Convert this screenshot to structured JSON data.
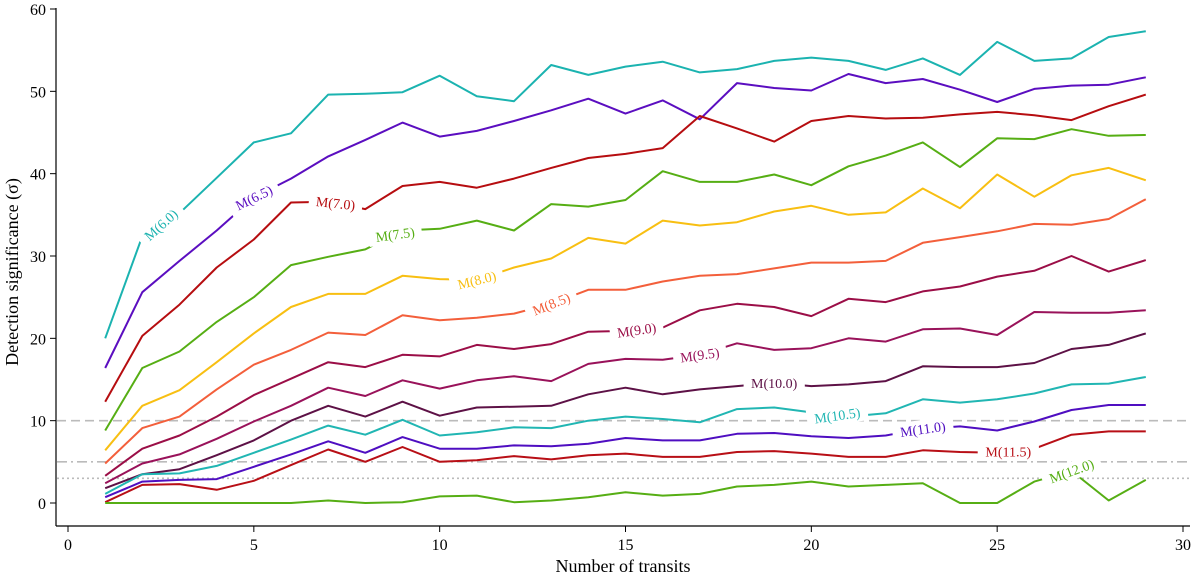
{
  "chart_data": {
    "type": "line",
    "title": "",
    "xlabel": "Number of transits",
    "ylabel": "Detection significance (σ)",
    "xlim": [
      0,
      30
    ],
    "ylim": [
      0,
      60
    ],
    "xticks": [
      0,
      5,
      10,
      15,
      20,
      25,
      30
    ],
    "yticks": [
      0,
      10,
      20,
      30,
      40,
      50,
      60
    ],
    "grid": false,
    "reference_lines": [
      {
        "name": "10-sigma",
        "y": 10,
        "style": "dashed",
        "color": "#bbbbbb"
      },
      {
        "name": "5-sigma",
        "y": 5,
        "style": "dashdot",
        "color": "#bbbbbb"
      },
      {
        "name": "3-sigma",
        "y": 3,
        "style": "dotted",
        "color": "#bbbbbb"
      }
    ],
    "x": [
      1,
      2,
      3,
      4,
      5,
      6,
      7,
      8,
      9,
      10,
      11,
      12,
      13,
      14,
      15,
      16,
      17,
      18,
      19,
      20,
      21,
      22,
      23,
      24,
      25,
      26,
      27,
      28,
      29
    ],
    "series": [
      {
        "name": "M(6.0)",
        "color": "#1bb3b0",
        "label_x": 2.5,
        "label_angle": -42,
        "values": [
          20,
          32.4,
          35.2,
          39.5,
          43.8,
          44.9,
          49.6,
          49.7,
          49.9,
          51.9,
          49.4,
          48.8,
          53.2,
          52.0,
          53.0,
          53.6,
          52.3,
          52.7,
          53.7,
          54.1,
          53.7,
          52.6,
          54.0,
          52.0,
          56.0,
          53.7,
          54.0,
          56.6,
          57.3
        ]
      },
      {
        "name": "M(6.5)",
        "color": "#5b0ec0",
        "label_x": 5.0,
        "label_angle": -26,
        "values": [
          16.4,
          25.6,
          29.4,
          33.1,
          37.1,
          39.4,
          42.1,
          44.1,
          46.2,
          44.5,
          45.2,
          46.4,
          47.7,
          49.1,
          47.3,
          48.9,
          46.6,
          51.0,
          50.4,
          50.1,
          52.1,
          51.0,
          51.5,
          50.2,
          48.7,
          50.3,
          50.7,
          50.8,
          51.7
        ]
      },
      {
        "name": "M(7.0)",
        "color": "#b60d10",
        "label_x": 7.2,
        "label_angle": 6,
        "values": [
          12.3,
          20.3,
          24.1,
          28.6,
          32.0,
          36.5,
          36.6,
          35.7,
          38.5,
          39.0,
          38.3,
          39.4,
          40.7,
          41.9,
          42.4,
          43.1,
          47.0,
          45.5,
          43.9,
          46.4,
          47.0,
          46.7,
          46.8,
          47.2,
          47.5,
          47.1,
          46.5,
          48.2,
          49.6
        ]
      },
      {
        "name": "M(7.5)",
        "color": "#56ae14",
        "label_x": 8.8,
        "label_angle": -8,
        "values": [
          8.8,
          16.4,
          18.4,
          22.0,
          25.0,
          28.9,
          29.9,
          30.8,
          33.1,
          33.3,
          34.3,
          33.1,
          36.3,
          36.0,
          36.8,
          40.3,
          39.0,
          39.0,
          39.9,
          38.6,
          40.9,
          42.2,
          43.8,
          40.8,
          44.3,
          44.2,
          45.4,
          44.6,
          44.7
        ]
      },
      {
        "name": "M(8.0)",
        "color": "#f8bf12",
        "label_x": 11.0,
        "label_angle": -14,
        "values": [
          6.4,
          11.8,
          13.7,
          17.1,
          20.6,
          23.8,
          25.4,
          25.4,
          27.6,
          27.2,
          27.1,
          28.6,
          29.7,
          32.2,
          31.5,
          34.3,
          33.7,
          34.1,
          35.4,
          36.1,
          35.0,
          35.3,
          38.2,
          35.8,
          39.9,
          37.2,
          39.8,
          40.7,
          39.2
        ]
      },
      {
        "name": "M(8.5)",
        "color": "#f35f3b",
        "label_x": 13.0,
        "label_angle": -22,
        "values": [
          4.8,
          9.1,
          10.5,
          13.8,
          16.8,
          18.6,
          20.7,
          20.4,
          22.8,
          22.2,
          22.5,
          23.0,
          24.2,
          25.9,
          25.9,
          26.9,
          27.6,
          27.8,
          28.5,
          29.2,
          29.2,
          29.4,
          31.6,
          32.3,
          33.0,
          33.9,
          33.8,
          34.5,
          36.9
        ]
      },
      {
        "name": "M(9.0)",
        "color": "#9b0e47",
        "label_x": 15.3,
        "label_angle": -8,
        "values": [
          3.3,
          6.6,
          8.2,
          10.5,
          13.1,
          15.1,
          17.1,
          16.5,
          18.0,
          17.8,
          19.2,
          18.7,
          19.3,
          20.8,
          20.9,
          21.3,
          23.4,
          24.2,
          23.8,
          22.7,
          24.8,
          24.4,
          25.7,
          26.3,
          27.5,
          28.2,
          30.0,
          28.1,
          29.5
        ]
      },
      {
        "name": "M(9.5)",
        "color": "#99125a",
        "label_x": 17.0,
        "label_angle": -8,
        "values": [
          2.4,
          4.8,
          5.9,
          7.8,
          9.9,
          11.8,
          14.0,
          13.0,
          14.9,
          13.9,
          14.9,
          15.4,
          14.8,
          16.9,
          17.5,
          17.4,
          18.0,
          19.4,
          18.6,
          18.8,
          20.0,
          19.6,
          21.1,
          21.2,
          20.4,
          23.2,
          23.1,
          23.1,
          23.4
        ]
      },
      {
        "name": "M(10.0)",
        "color": "#5d1146",
        "label_x": 19.0,
        "label_angle": 0,
        "values": [
          1.8,
          3.5,
          4.1,
          5.8,
          7.6,
          10.0,
          11.8,
          10.5,
          12.3,
          10.6,
          11.6,
          11.7,
          11.8,
          13.2,
          14.0,
          13.2,
          13.8,
          14.2,
          14.6,
          14.2,
          14.4,
          14.8,
          16.6,
          16.5,
          16.5,
          17.0,
          18.7,
          19.2,
          20.6
        ]
      },
      {
        "name": "M(10.5)",
        "color": "#21b6b3",
        "label_x": 20.7,
        "label_angle": -8,
        "values": [
          1.1,
          3.5,
          3.6,
          4.5,
          6.1,
          7.7,
          9.4,
          8.3,
          10.1,
          8.2,
          8.6,
          9.2,
          9.1,
          10.0,
          10.5,
          10.2,
          9.8,
          11.4,
          11.6,
          11.0,
          10.5,
          10.9,
          12.6,
          12.2,
          12.6,
          13.3,
          14.4,
          14.5,
          15.3
        ]
      },
      {
        "name": "M(11.0)",
        "color": "#4f0ec1",
        "label_x": 23.0,
        "label_angle": -8,
        "values": [
          0.7,
          2.6,
          2.8,
          2.9,
          4.4,
          5.9,
          7.5,
          6.1,
          8.0,
          6.6,
          6.6,
          7.0,
          6.9,
          7.2,
          7.9,
          7.6,
          7.6,
          8.4,
          8.5,
          8.1,
          7.9,
          8.2,
          9.0,
          9.3,
          8.8,
          9.9,
          11.3,
          11.9,
          11.9
        ]
      },
      {
        "name": "M(11.5)",
        "color": "#b80f16",
        "label_x": 25.3,
        "label_angle": 0,
        "values": [
          0.1,
          2.2,
          2.3,
          1.6,
          2.7,
          4.6,
          6.5,
          5.0,
          6.8,
          5.0,
          5.2,
          5.7,
          5.3,
          5.8,
          6.0,
          5.6,
          5.6,
          6.2,
          6.3,
          6.0,
          5.6,
          5.6,
          6.4,
          6.2,
          6.1,
          6.6,
          8.3,
          8.7,
          8.7
        ]
      },
      {
        "name": "M(12.0)",
        "color": "#56ae14",
        "label_x": 27.0,
        "label_angle": -20,
        "values": [
          0.0,
          0.0,
          0.0,
          0.0,
          0.0,
          0.0,
          0.3,
          0.0,
          0.1,
          0.8,
          0.9,
          0.1,
          0.3,
          0.7,
          1.3,
          0.9,
          1.1,
          2.0,
          2.2,
          2.6,
          2.0,
          2.2,
          2.4,
          0.0,
          0.0,
          2.6,
          3.9,
          0.3,
          2.8
        ]
      }
    ]
  }
}
